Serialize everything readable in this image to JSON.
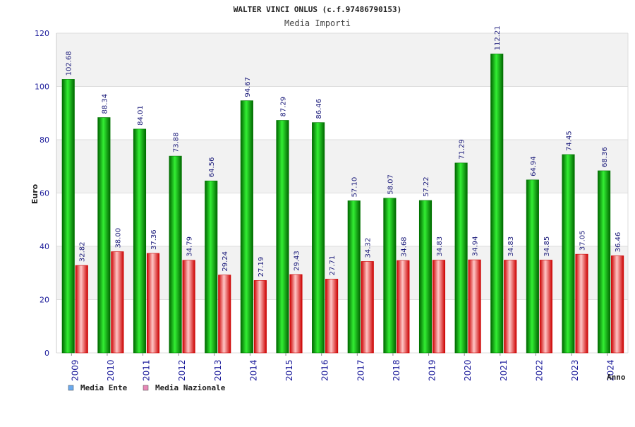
{
  "chart_data": {
    "type": "bar",
    "title": "WALTER VINCI ONLUS (c.f.97486790153)",
    "subtitle": "Media Importi",
    "xlabel": "Anno",
    "ylabel": "Euro",
    "ylim": [
      0,
      120
    ],
    "yticks": [
      0,
      20,
      40,
      60,
      80,
      100,
      120
    ],
    "grid": true,
    "legend_position": "bottom-left",
    "categories": [
      "2009",
      "2010",
      "2011",
      "2012",
      "2013",
      "2014",
      "2015",
      "2016",
      "2017",
      "2018",
      "2019",
      "2020",
      "2021",
      "2022",
      "2023",
      "2024"
    ],
    "series": [
      {
        "name": "Media Ente",
        "bar_color": "#00c000",
        "legend_color": "#6aa9ee",
        "values": [
          102.68,
          88.34,
          84.01,
          73.88,
          64.56,
          94.67,
          87.29,
          86.46,
          57.1,
          58.07,
          57.22,
          71.29,
          112.21,
          64.94,
          74.45,
          68.36
        ],
        "labels": [
          "102.68",
          "88.34",
          "84.01",
          "73.88",
          "64.56",
          "94.67",
          "87.29",
          "86.46",
          "57.10",
          "58.07",
          "57.22",
          "71.29",
          "112.21",
          "64.94",
          "74.45",
          "68.36"
        ]
      },
      {
        "name": "Media Nazionale",
        "bar_color": "#ee1111",
        "legend_color": "#e888b8",
        "values": [
          32.82,
          38.0,
          37.36,
          34.79,
          29.24,
          27.19,
          29.43,
          27.71,
          34.32,
          34.68,
          34.83,
          34.94,
          34.83,
          34.85,
          37.05,
          36.46
        ],
        "labels": [
          "32.82",
          "38.00",
          "37.36",
          "34.79",
          "29.24",
          "27.19",
          "29.43",
          "27.71",
          "34.32",
          "34.68",
          "34.83",
          "34.94",
          "34.83",
          "34.85",
          "37.05",
          "36.46"
        ]
      }
    ]
  }
}
